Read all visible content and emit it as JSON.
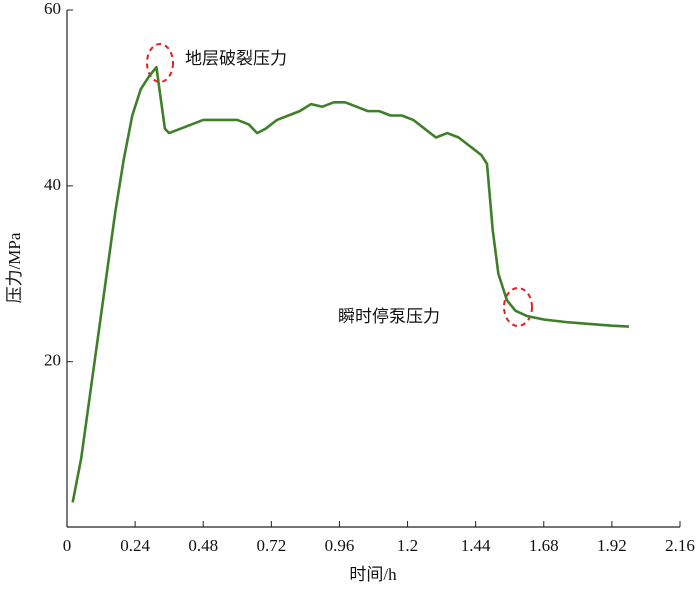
{
  "chart_data": {
    "type": "line",
    "x_label": "时间/h",
    "y_label": "压力/MPa",
    "annotations": [
      "地层破裂压力",
      "瞬时停泵压力"
    ],
    "x": [
      0.02,
      0.05,
      0.08,
      0.11,
      0.14,
      0.17,
      0.2,
      0.23,
      0.26,
      0.29,
      0.315,
      0.33,
      0.345,
      0.36,
      0.4,
      0.44,
      0.48,
      0.52,
      0.56,
      0.6,
      0.64,
      0.67,
      0.7,
      0.74,
      0.78,
      0.82,
      0.86,
      0.9,
      0.94,
      0.98,
      1.02,
      1.06,
      1.1,
      1.14,
      1.18,
      1.22,
      1.26,
      1.3,
      1.34,
      1.38,
      1.42,
      1.46,
      1.48,
      1.5,
      1.52,
      1.55,
      1.58,
      1.62,
      1.68,
      1.76,
      1.84,
      1.92,
      1.98
    ],
    "series": [
      {
        "color": "#3f7f2a",
        "values": [
          4,
          9,
          16,
          23,
          30,
          37,
          43,
          48,
          51,
          52.5,
          53.5,
          50,
          46.5,
          46,
          46.5,
          47,
          47.5,
          47.5,
          47.5,
          47.5,
          47,
          46,
          46.5,
          47.5,
          48,
          48.5,
          49.3,
          49,
          49.5,
          49.5,
          49,
          48.5,
          48.5,
          48,
          48,
          47.5,
          46.5,
          45.5,
          46,
          45.5,
          44.5,
          43.5,
          42.5,
          35,
          30,
          27,
          25.8,
          25.2,
          24.8,
          24.5,
          24.3,
          24.1,
          24
        ]
      }
    ],
    "xlim": [
      0,
      2.16
    ],
    "xticks": [
      0,
      0.24,
      0.48,
      0.72,
      0.96,
      1.2,
      1.44,
      1.68,
      1.92,
      2.16
    ],
    "ylim": [
      1.2,
      60
    ],
    "yticks": [
      20,
      40,
      60
    ]
  }
}
